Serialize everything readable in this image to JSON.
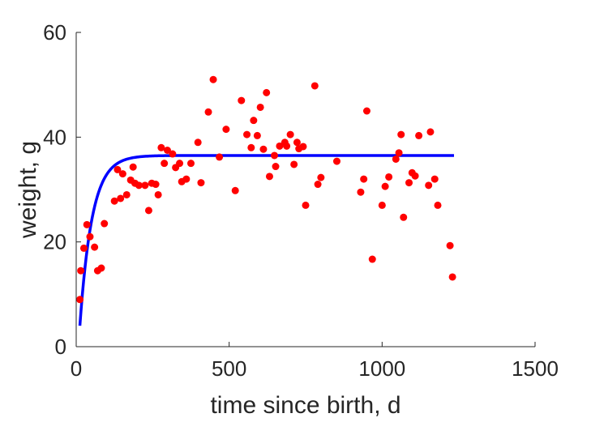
{
  "chart_data": {
    "type": "scatter",
    "title": "",
    "xlabel": "time since birth, d",
    "ylabel": "weight, g",
    "xlim": [
      0,
      1500
    ],
    "ylim": [
      0,
      60
    ],
    "xticks": [
      "0",
      "500",
      "1000",
      "1500"
    ],
    "yticks": [
      "0",
      "20",
      "40",
      "60"
    ],
    "grid": false,
    "legend": "none",
    "colors": {
      "points": "#ff0000",
      "fit": "#0000ff",
      "axis": "#262626"
    },
    "series": [
      {
        "type": "scatter",
        "points": [
          [
            12,
            9.0
          ],
          [
            15,
            14.5
          ],
          [
            25,
            18.8
          ],
          [
            35,
            23.3
          ],
          [
            45,
            21.0
          ],
          [
            60,
            19.0
          ],
          [
            70,
            14.5
          ],
          [
            82,
            15.0
          ],
          [
            92,
            23.5
          ],
          [
            125,
            27.8
          ],
          [
            135,
            33.8
          ],
          [
            145,
            28.3
          ],
          [
            152,
            33.0
          ],
          [
            165,
            29.0
          ],
          [
            178,
            31.8
          ],
          [
            186,
            34.3
          ],
          [
            192,
            31.2
          ],
          [
            205,
            30.8
          ],
          [
            225,
            30.8
          ],
          [
            237,
            26.0
          ],
          [
            247,
            31.2
          ],
          [
            260,
            31.0
          ],
          [
            268,
            29.0
          ],
          [
            278,
            38.0
          ],
          [
            288,
            35.0
          ],
          [
            298,
            37.5
          ],
          [
            315,
            36.8
          ],
          [
            325,
            34.2
          ],
          [
            338,
            35.0
          ],
          [
            345,
            31.5
          ],
          [
            360,
            32.0
          ],
          [
            375,
            35.0
          ],
          [
            398,
            39.0
          ],
          [
            408,
            31.3
          ],
          [
            432,
            44.8
          ],
          [
            448,
            51.0
          ],
          [
            468,
            36.2
          ],
          [
            490,
            41.5
          ],
          [
            520,
            29.8
          ],
          [
            540,
            47.0
          ],
          [
            558,
            40.5
          ],
          [
            572,
            38.0
          ],
          [
            580,
            43.2
          ],
          [
            592,
            40.3
          ],
          [
            602,
            45.7
          ],
          [
            612,
            37.7
          ],
          [
            622,
            48.5
          ],
          [
            632,
            32.5
          ],
          [
            648,
            36.5
          ],
          [
            652,
            34.4
          ],
          [
            665,
            38.3
          ],
          [
            682,
            39.0
          ],
          [
            688,
            38.3
          ],
          [
            700,
            40.5
          ],
          [
            712,
            34.8
          ],
          [
            722,
            39.0
          ],
          [
            728,
            37.8
          ],
          [
            742,
            38.2
          ],
          [
            750,
            27.0
          ],
          [
            780,
            49.8
          ],
          [
            790,
            31.0
          ],
          [
            800,
            32.3
          ],
          [
            852,
            35.4
          ],
          [
            930,
            29.5
          ],
          [
            940,
            32.0
          ],
          [
            950,
            45.0
          ],
          [
            968,
            16.7
          ],
          [
            1000,
            27.0
          ],
          [
            1010,
            30.6
          ],
          [
            1022,
            32.4
          ],
          [
            1045,
            35.8
          ],
          [
            1055,
            37.0
          ],
          [
            1062,
            40.5
          ],
          [
            1070,
            24.7
          ],
          [
            1088,
            31.3
          ],
          [
            1098,
            33.2
          ],
          [
            1108,
            32.6
          ],
          [
            1120,
            40.3
          ],
          [
            1152,
            30.8
          ],
          [
            1158,
            41.0
          ],
          [
            1172,
            32.0
          ],
          [
            1182,
            27.0
          ],
          [
            1222,
            19.3
          ],
          [
            1230,
            13.3
          ]
        ]
      },
      {
        "type": "line",
        "model": "exponential approach",
        "y0": 4.0,
        "asymptote": 36.5,
        "rate": 0.025,
        "x_range": [
          12,
          1235
        ]
      }
    ]
  }
}
